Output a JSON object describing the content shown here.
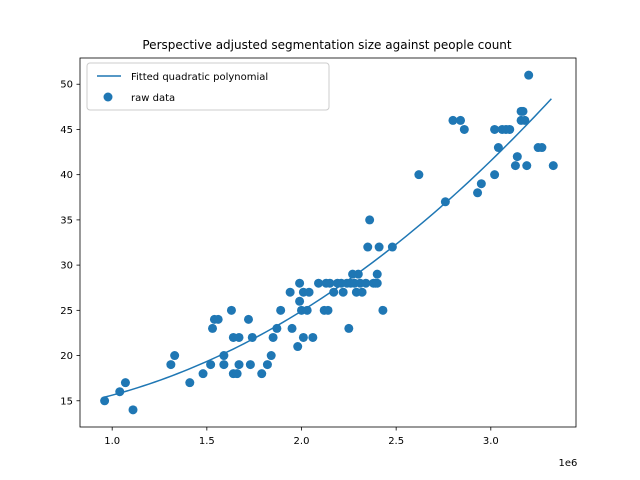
{
  "chart_data": {
    "type": "scatter",
    "title": "Perspective adjusted segmentation size against people count",
    "xlabel": "",
    "ylabel": "",
    "x_offset_label": "1e6",
    "xlim": [
      0.83,
      3.45
    ],
    "ylim": [
      12.1,
      52.9
    ],
    "x_ticks": [
      1.0,
      1.5,
      2.0,
      2.5,
      3.0
    ],
    "x_tick_labels": [
      "1.0",
      "1.5",
      "2.0",
      "2.5",
      "3.0"
    ],
    "y_ticks": [
      15,
      20,
      25,
      30,
      35,
      40,
      45,
      50
    ],
    "y_tick_labels": [
      "15",
      "20",
      "25",
      "30",
      "35",
      "40",
      "45",
      "50"
    ],
    "grid": false,
    "legend_position": "top-left",
    "colors": {
      "series": "#1f77b4",
      "axes": "#000000",
      "background": "#ffffff"
    },
    "series": [
      {
        "name": "Fitted quadratic polynomial",
        "kind": "line",
        "quadratic_fit": {
          "x_start": 0.96,
          "x_end": 3.32,
          "y_at_start": 15.4,
          "y_at_mid": 26.8,
          "y_at_end": 48.4
        }
      },
      {
        "name": "raw data",
        "kind": "scatter",
        "points": [
          [
            0.96,
            15
          ],
          [
            1.04,
            16
          ],
          [
            1.07,
            17
          ],
          [
            1.11,
            14
          ],
          [
            1.31,
            19
          ],
          [
            1.33,
            20
          ],
          [
            1.41,
            17
          ],
          [
            1.48,
            18
          ],
          [
            1.52,
            19
          ],
          [
            1.53,
            23
          ],
          [
            1.54,
            24
          ],
          [
            1.56,
            24
          ],
          [
            1.59,
            20
          ],
          [
            1.59,
            19
          ],
          [
            1.63,
            25
          ],
          [
            1.64,
            22
          ],
          [
            1.64,
            18
          ],
          [
            1.66,
            18
          ],
          [
            1.67,
            19
          ],
          [
            1.67,
            22
          ],
          [
            1.72,
            24
          ],
          [
            1.73,
            19
          ],
          [
            1.74,
            22
          ],
          [
            1.79,
            18
          ],
          [
            1.82,
            19
          ],
          [
            1.84,
            20
          ],
          [
            1.85,
            22
          ],
          [
            1.87,
            23
          ],
          [
            1.89,
            25
          ],
          [
            1.94,
            27
          ],
          [
            1.95,
            23
          ],
          [
            1.98,
            21
          ],
          [
            1.99,
            26
          ],
          [
            1.99,
            28
          ],
          [
            2.0,
            25
          ],
          [
            2.01,
            22
          ],
          [
            2.01,
            27
          ],
          [
            2.03,
            25
          ],
          [
            2.04,
            27
          ],
          [
            2.06,
            22
          ],
          [
            2.09,
            28
          ],
          [
            2.12,
            25
          ],
          [
            2.13,
            28
          ],
          [
            2.14,
            25
          ],
          [
            2.15,
            28
          ],
          [
            2.17,
            27
          ],
          [
            2.19,
            28
          ],
          [
            2.21,
            28
          ],
          [
            2.22,
            27
          ],
          [
            2.24,
            28
          ],
          [
            2.25,
            23
          ],
          [
            2.26,
            28
          ],
          [
            2.27,
            29
          ],
          [
            2.28,
            28
          ],
          [
            2.29,
            27
          ],
          [
            2.3,
            29
          ],
          [
            2.31,
            28
          ],
          [
            2.32,
            27
          ],
          [
            2.34,
            28
          ],
          [
            2.35,
            32
          ],
          [
            2.36,
            35
          ],
          [
            2.38,
            28
          ],
          [
            2.39,
            28
          ],
          [
            2.4,
            29
          ],
          [
            2.4,
            28
          ],
          [
            2.41,
            32
          ],
          [
            2.43,
            25
          ],
          [
            2.48,
            32
          ],
          [
            2.62,
            40
          ],
          [
            2.76,
            37
          ],
          [
            2.8,
            46
          ],
          [
            2.84,
            46
          ],
          [
            2.86,
            45
          ],
          [
            2.93,
            38
          ],
          [
            2.95,
            39
          ],
          [
            3.02,
            40
          ],
          [
            3.02,
            45
          ],
          [
            3.04,
            43
          ],
          [
            3.06,
            45
          ],
          [
            3.08,
            45
          ],
          [
            3.1,
            45
          ],
          [
            3.13,
            41
          ],
          [
            3.14,
            42
          ],
          [
            3.16,
            47
          ],
          [
            3.16,
            46
          ],
          [
            3.17,
            47
          ],
          [
            3.18,
            46
          ],
          [
            3.19,
            41
          ],
          [
            3.2,
            51
          ],
          [
            3.25,
            43
          ],
          [
            3.27,
            43
          ],
          [
            3.33,
            41
          ]
        ]
      }
    ]
  }
}
